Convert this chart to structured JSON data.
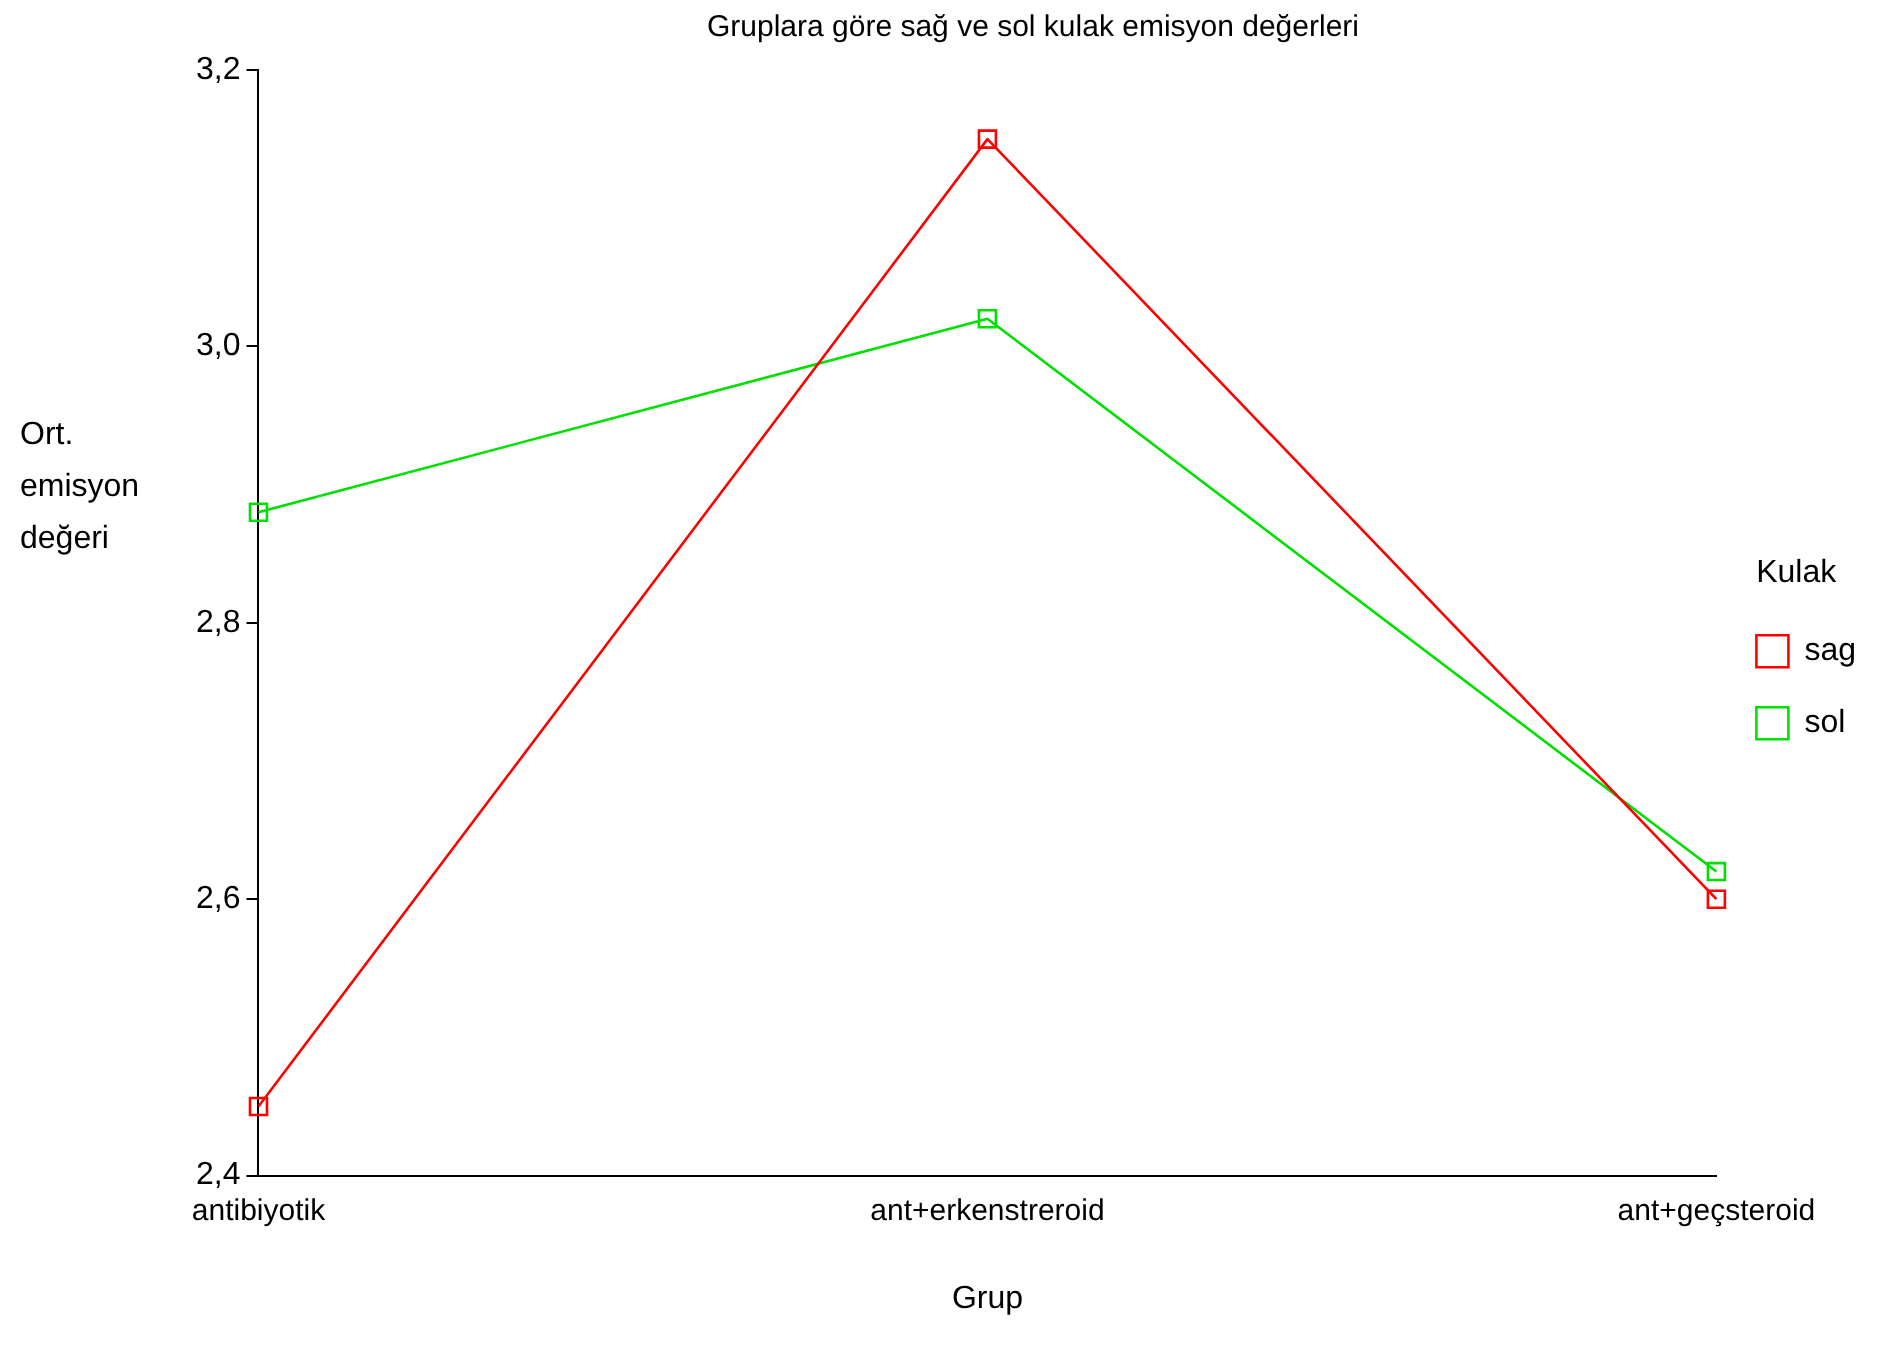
{
  "chart_data": {
    "type": "line",
    "title": "Gruplara göre sağ ve sol kulak emisyon değerleri",
    "xlabel": "Grup",
    "ylabel": "Ort. emisyon değeri",
    "legend_title": "Kulak",
    "categories": [
      "antibiyotik",
      "ant+erkenstreroid",
      "ant+geçsteroid"
    ],
    "series": [
      {
        "name": "sag",
        "color": "#ff0000",
        "values": [
          2.45,
          3.15,
          2.6
        ]
      },
      {
        "name": "sol",
        "color": "#00e000",
        "values": [
          2.88,
          3.02,
          2.62
        ]
      }
    ],
    "ylim": [
      2.4,
      3.2
    ],
    "yticks": [
      {
        "value": 2.4,
        "label": "2,4"
      },
      {
        "value": 2.6,
        "label": "2,6"
      },
      {
        "value": 2.8,
        "label": "2,8"
      },
      {
        "value": 3.0,
        "label": "3,0"
      },
      {
        "value": 3.2,
        "label": "3,2"
      }
    ],
    "grid": false,
    "legend": "right",
    "marker": "square",
    "line_style": "solid"
  }
}
